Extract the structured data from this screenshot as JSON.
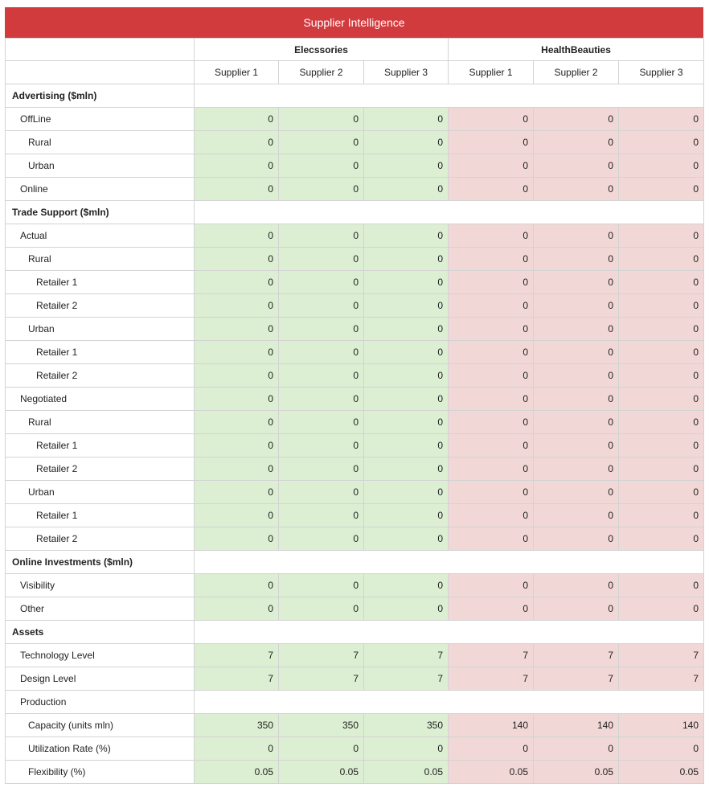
{
  "title": "Supplier Intelligence",
  "groups": [
    "Elecssories",
    "HealthBeauties"
  ],
  "suppliers": [
    "Supplier 1",
    "Supplier 2",
    "Supplier 3",
    "Supplier 1",
    "Supplier 2",
    "Supplier 3"
  ],
  "colors": {
    "header": "#d23b3e",
    "group_1_cells": "#dcefd3",
    "group_2_cells": "#f1d8d6",
    "border": "#d3d3d3"
  },
  "rows": [
    {
      "label": "Advertising ($mln)",
      "level": 0,
      "section": true
    },
    {
      "label": "OffLine",
      "level": 1,
      "values": [
        "0",
        "0",
        "0",
        "0",
        "0",
        "0"
      ]
    },
    {
      "label": "Rural",
      "level": 2,
      "values": [
        "0",
        "0",
        "0",
        "0",
        "0",
        "0"
      ]
    },
    {
      "label": "Urban",
      "level": 2,
      "values": [
        "0",
        "0",
        "0",
        "0",
        "0",
        "0"
      ]
    },
    {
      "label": "Online",
      "level": 1,
      "values": [
        "0",
        "0",
        "0",
        "0",
        "0",
        "0"
      ]
    },
    {
      "label": "Trade Support ($mln)",
      "level": 0,
      "section": true
    },
    {
      "label": "Actual",
      "level": 1,
      "values": [
        "0",
        "0",
        "0",
        "0",
        "0",
        "0"
      ]
    },
    {
      "label": "Rural",
      "level": 2,
      "values": [
        "0",
        "0",
        "0",
        "0",
        "0",
        "0"
      ]
    },
    {
      "label": "Retailer 1",
      "level": 3,
      "values": [
        "0",
        "0",
        "0",
        "0",
        "0",
        "0"
      ]
    },
    {
      "label": "Retailer 2",
      "level": 3,
      "values": [
        "0",
        "0",
        "0",
        "0",
        "0",
        "0"
      ]
    },
    {
      "label": "Urban",
      "level": 2,
      "values": [
        "0",
        "0",
        "0",
        "0",
        "0",
        "0"
      ]
    },
    {
      "label": "Retailer 1",
      "level": 3,
      "values": [
        "0",
        "0",
        "0",
        "0",
        "0",
        "0"
      ]
    },
    {
      "label": "Retailer 2",
      "level": 3,
      "values": [
        "0",
        "0",
        "0",
        "0",
        "0",
        "0"
      ]
    },
    {
      "label": "Negotiated",
      "level": 1,
      "values": [
        "0",
        "0",
        "0",
        "0",
        "0",
        "0"
      ]
    },
    {
      "label": "Rural",
      "level": 2,
      "values": [
        "0",
        "0",
        "0",
        "0",
        "0",
        "0"
      ]
    },
    {
      "label": "Retailer 1",
      "level": 3,
      "values": [
        "0",
        "0",
        "0",
        "0",
        "0",
        "0"
      ]
    },
    {
      "label": "Retailer 2",
      "level": 3,
      "values": [
        "0",
        "0",
        "0",
        "0",
        "0",
        "0"
      ]
    },
    {
      "label": "Urban",
      "level": 2,
      "values": [
        "0",
        "0",
        "0",
        "0",
        "0",
        "0"
      ]
    },
    {
      "label": "Retailer 1",
      "level": 3,
      "values": [
        "0",
        "0",
        "0",
        "0",
        "0",
        "0"
      ]
    },
    {
      "label": "Retailer 2",
      "level": 3,
      "values": [
        "0",
        "0",
        "0",
        "0",
        "0",
        "0"
      ]
    },
    {
      "label": "Online Investments ($mln)",
      "level": 0,
      "section": true
    },
    {
      "label": "Visibility",
      "level": 1,
      "values": [
        "0",
        "0",
        "0",
        "0",
        "0",
        "0"
      ]
    },
    {
      "label": "Other",
      "level": 1,
      "values": [
        "0",
        "0",
        "0",
        "0",
        "0",
        "0"
      ]
    },
    {
      "label": "Assets",
      "level": 0,
      "section": true
    },
    {
      "label": "Technology Level",
      "level": 1,
      "values": [
        "7",
        "7",
        "7",
        "7",
        "7",
        "7"
      ]
    },
    {
      "label": "Design Level",
      "level": 1,
      "values": [
        "7",
        "7",
        "7",
        "7",
        "7",
        "7"
      ]
    },
    {
      "label": "Production",
      "level": 1,
      "blank": true
    },
    {
      "label": "Capacity (units mln)",
      "level": 2,
      "values": [
        "350",
        "350",
        "350",
        "140",
        "140",
        "140"
      ]
    },
    {
      "label": "Utilization Rate (%)",
      "level": 2,
      "values": [
        "0",
        "0",
        "0",
        "0",
        "0",
        "0"
      ]
    },
    {
      "label": "Flexibility (%)",
      "level": 2,
      "values": [
        "0.05",
        "0.05",
        "0.05",
        "0.05",
        "0.05",
        "0.05"
      ]
    }
  ]
}
